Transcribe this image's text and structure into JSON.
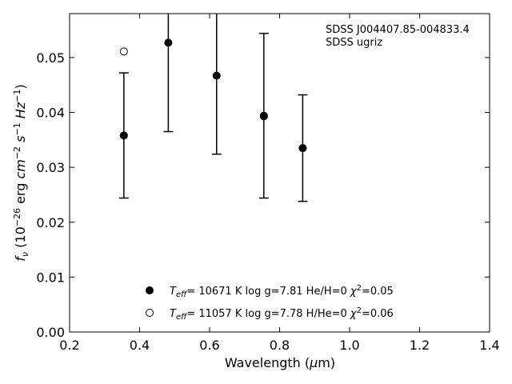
{
  "chart_data": {
    "type": "scatter",
    "xlabel": "Wavelength (μm)",
    "ylabel": "f_ν (10^-26 erg cm^-2 s^-1 Hz^-1)",
    "xlim": [
      0.2,
      1.4
    ],
    "ylim": [
      0.0,
      0.058
    ],
    "x_ticks": [
      "0.2",
      "0.4",
      "0.6",
      "0.8",
      "1.0",
      "1.2",
      "1.4"
    ],
    "y_ticks": [
      "0.00",
      "0.01",
      "0.02",
      "0.03",
      "0.04",
      "0.05"
    ],
    "annotation": [
      "SDSS J004407.85-004833.4",
      "SDSS ugriz"
    ],
    "observed": [
      {
        "x": 0.355,
        "y": 0.0358,
        "err": 0.0114
      },
      {
        "x": 0.482,
        "y": 0.0527,
        "err": 0.0162
      },
      {
        "x": 0.62,
        "y": 0.0467,
        "err": 0.0143
      },
      {
        "x": 0.755,
        "y": 0.0394,
        "err": 0.015
      },
      {
        "x": 0.866,
        "y": 0.0335,
        "err": 0.0097
      }
    ],
    "model": [
      {
        "x": 0.355,
        "y": 0.0511
      },
      {
        "x": 0.755,
        "y": 0.0393
      },
      {
        "x": 0.866,
        "y": 0.0335
      }
    ],
    "legend": [
      {
        "marker": "filled-circle",
        "label": "T_eff= 10671 K  log g=7.81  He/H=0  χ²=0.05"
      },
      {
        "marker": "open-circle",
        "label": "T_eff= 11057 K  log g=7.78  H/He=0  χ²=0.06"
      }
    ],
    "legend_position": "bottom-center",
    "grid": false
  }
}
